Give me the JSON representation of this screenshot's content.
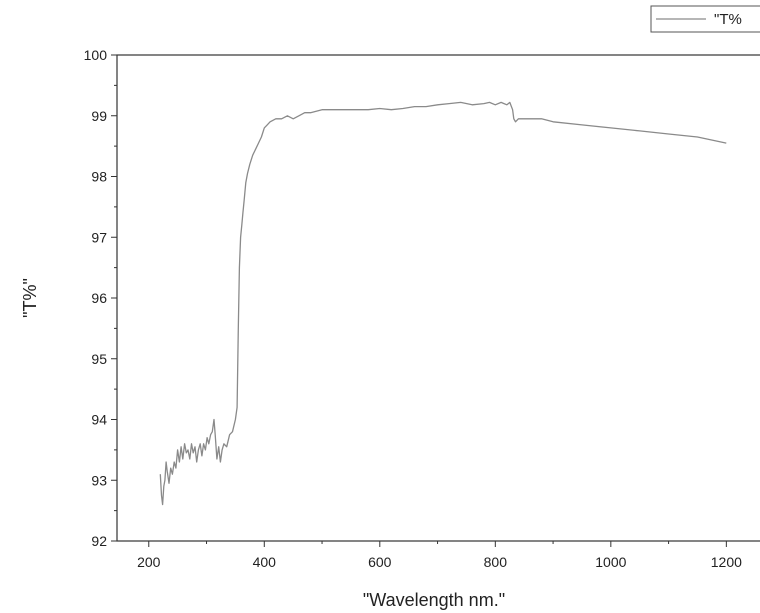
{
  "chart_data": {
    "type": "line",
    "title": "",
    "xlabel": "\"Wavelength nm.\"",
    "ylabel": "\"T%\"",
    "xlim": [
      145,
      1260
    ],
    "ylim": [
      92,
      100
    ],
    "x_ticks": [
      200,
      400,
      600,
      800,
      1000,
      1200
    ],
    "x_tick_labels": [
      "200",
      "400",
      "600",
      "800",
      "1000",
      "1200"
    ],
    "y_ticks": [
      92,
      93,
      94,
      95,
      96,
      97,
      98,
      99,
      100
    ],
    "y_tick_labels": [
      "92",
      "93",
      "94",
      "95",
      "96",
      "97",
      "98",
      "99",
      "100"
    ],
    "grid": false,
    "legend_position": "top-right",
    "series": [
      {
        "name": "\"T%",
        "color": "#8a8a8a",
        "x": [
          220,
          222,
          224,
          226,
          228,
          230,
          232,
          235,
          238,
          241,
          244,
          247,
          250,
          253,
          256,
          259,
          262,
          265,
          268,
          271,
          274,
          277,
          280,
          283,
          286,
          289,
          292,
          295,
          298,
          301,
          304,
          307,
          310,
          313,
          315,
          318,
          321,
          324,
          327,
          330,
          335,
          340,
          345,
          350,
          353,
          355,
          357,
          359,
          361,
          363,
          365,
          368,
          371,
          375,
          380,
          385,
          390,
          395,
          400,
          405,
          410,
          420,
          430,
          440,
          450,
          460,
          470,
          480,
          500,
          520,
          540,
          560,
          580,
          600,
          620,
          640,
          660,
          680,
          700,
          720,
          740,
          760,
          780,
          790,
          800,
          810,
          815,
          820,
          825,
          830,
          832,
          835,
          840,
          850,
          860,
          880,
          900,
          950,
          1000,
          1050,
          1100,
          1150,
          1200
        ],
        "y": [
          93.1,
          92.75,
          92.6,
          92.9,
          93.0,
          93.3,
          93.15,
          92.95,
          93.2,
          93.1,
          93.3,
          93.2,
          93.5,
          93.3,
          93.55,
          93.35,
          93.6,
          93.45,
          93.5,
          93.35,
          93.6,
          93.45,
          93.55,
          93.3,
          93.5,
          93.6,
          93.4,
          93.6,
          93.5,
          93.7,
          93.6,
          93.75,
          93.8,
          94.0,
          93.75,
          93.35,
          93.55,
          93.3,
          93.5,
          93.6,
          93.55,
          93.75,
          93.8,
          94.0,
          94.2,
          95.5,
          96.5,
          97.0,
          97.2,
          97.4,
          97.6,
          97.9,
          98.05,
          98.2,
          98.35,
          98.45,
          98.55,
          98.65,
          98.8,
          98.85,
          98.9,
          98.95,
          98.95,
          99.0,
          98.95,
          99.0,
          99.05,
          99.05,
          99.1,
          99.1,
          99.1,
          99.1,
          99.1,
          99.12,
          99.1,
          99.12,
          99.15,
          99.15,
          99.18,
          99.2,
          99.22,
          99.18,
          99.2,
          99.22,
          99.18,
          99.22,
          99.2,
          99.18,
          99.22,
          99.1,
          98.95,
          98.9,
          98.95,
          98.95,
          98.95,
          98.95,
          98.9,
          98.85,
          98.8,
          98.75,
          98.7,
          98.65,
          98.55
        ]
      }
    ]
  }
}
